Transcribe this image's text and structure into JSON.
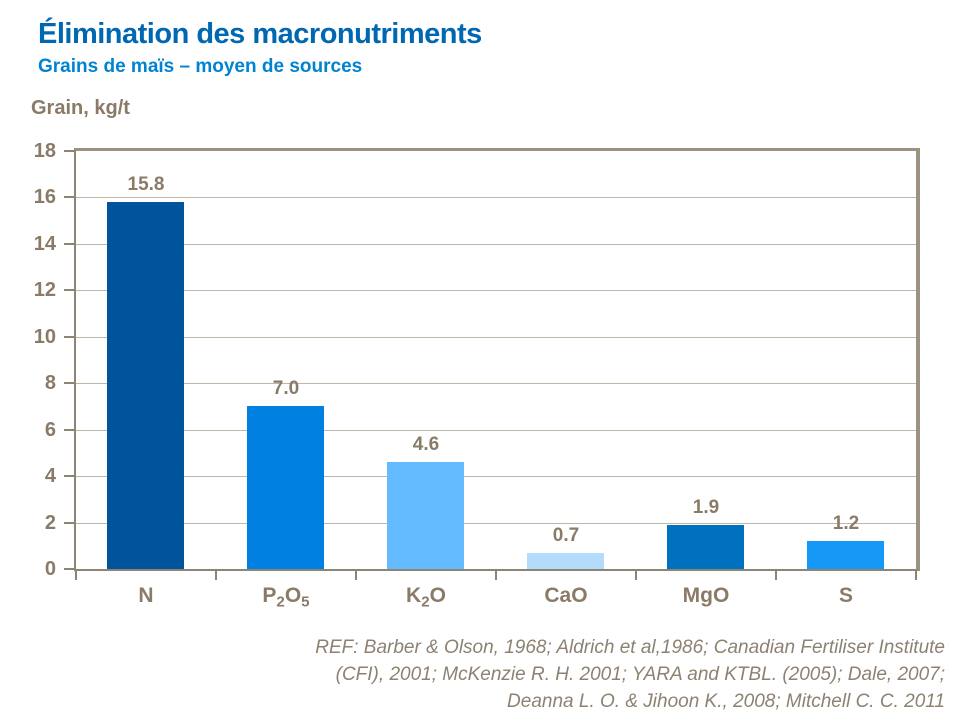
{
  "page": {
    "title": "Élimination des macronutriments",
    "subtitle": "Grains de maïs – moyen de sources",
    "y_axis_title": "Grain, kg/t",
    "reference_lines": [
      "REF: Barber & Olson, 1968; Aldrich et al,1986; Canadian Fertiliser Institute",
      "(CFI), 2001; McKenzie R. H. 2001; YARA and KTBL. (2005); Dale, 2007;",
      "Deanna L. O. & Jihoon K.,  2008; Mitchell C. C. 2011"
    ]
  },
  "chart_data": {
    "type": "bar",
    "title": "Élimination des macronutriments",
    "subtitle": "Grains de maïs – moyen de sources",
    "ylabel": "Grain, kg/t",
    "xlabel": "",
    "ylim": [
      0,
      18
    ],
    "yticks": [
      0,
      2,
      4,
      6,
      8,
      10,
      12,
      14,
      16,
      18
    ],
    "grid": true,
    "legend": false,
    "categories": [
      "N",
      "P2O5",
      "K2O",
      "CaO",
      "MgO",
      "S"
    ],
    "category_parts": [
      [
        {
          "t": "N"
        }
      ],
      [
        {
          "t": "P"
        },
        {
          "t": "2",
          "sub": true
        },
        {
          "t": "O"
        },
        {
          "t": "5",
          "sub": true
        }
      ],
      [
        {
          "t": "K"
        },
        {
          "t": "2",
          "sub": true
        },
        {
          "t": "O"
        }
      ],
      [
        {
          "t": "CaO"
        }
      ],
      [
        {
          "t": "MgO"
        }
      ],
      [
        {
          "t": "S"
        }
      ]
    ],
    "values": [
      15.8,
      7.0,
      4.6,
      0.7,
      1.9,
      1.2
    ],
    "value_labels": [
      "15.8",
      "7.0",
      "4.6",
      "0.7",
      "1.9",
      "1.2"
    ],
    "bar_colors": [
      "#00549B",
      "#0081E2",
      "#64BAFE",
      "#B3DBFA",
      "#0071BE",
      "#1598F6"
    ]
  },
  "colors": {
    "title": "#0067B2",
    "subtitle": "#0083D1",
    "label_text": "#8A7B68",
    "axis_line": "#8C8474",
    "gridline": "#BDB6A9",
    "plot_border": "#9B9284",
    "reference_text": "#8D8272"
  }
}
